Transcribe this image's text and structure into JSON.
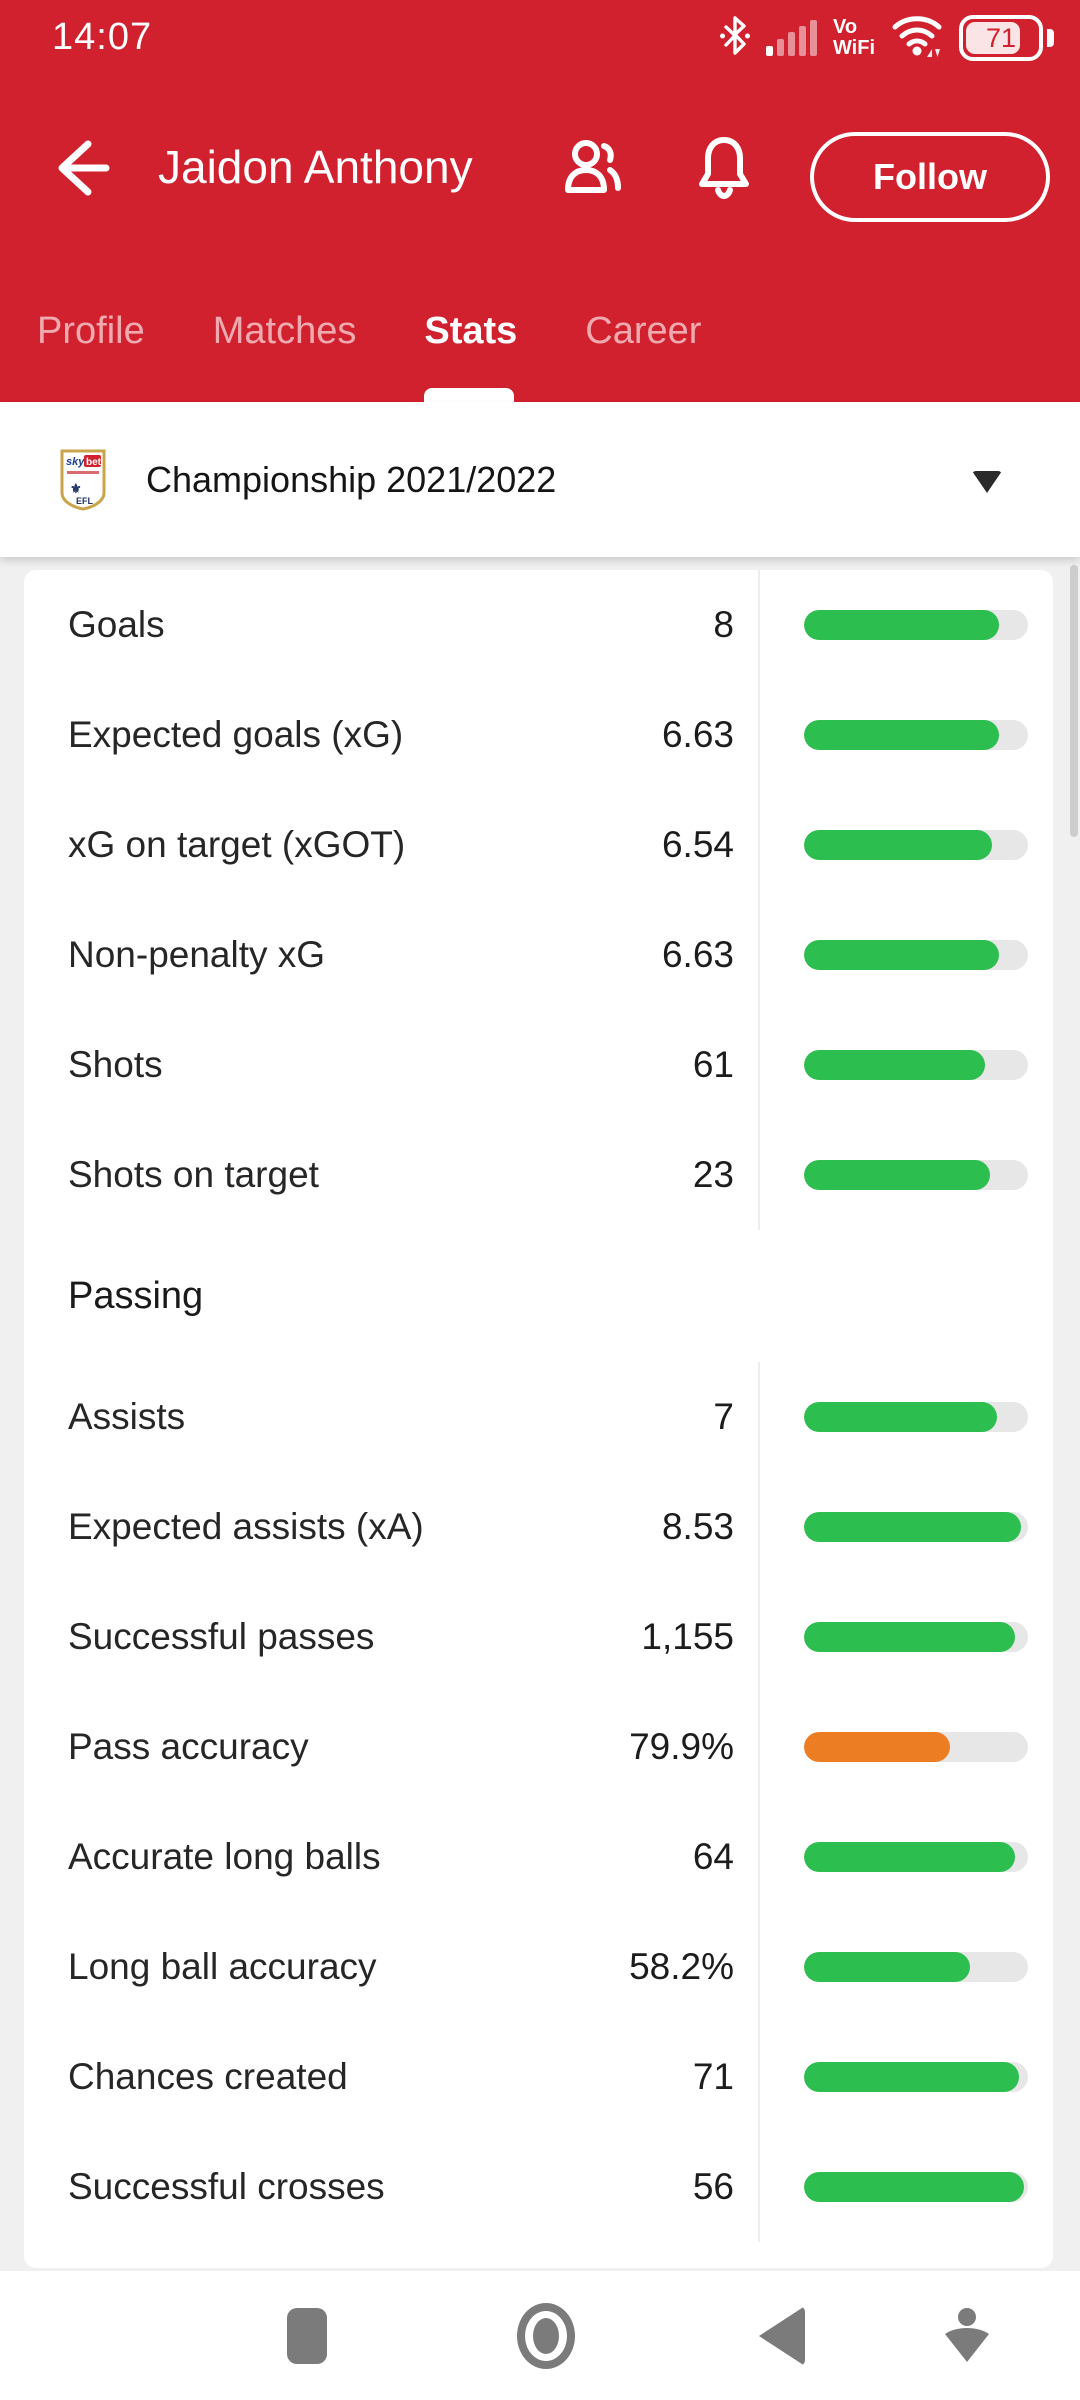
{
  "colors": {
    "header_red": "#d1202e",
    "green": "#2dbe50",
    "orange": "#ec7d23",
    "bar_track": "#e7e7e7"
  },
  "status_bar": {
    "time": "14:07",
    "vo_line1": "Vo",
    "vo_line2": "WiFi",
    "battery_percent": "71"
  },
  "header": {
    "title": "Jaidon Anthony",
    "follow_label": "Follow"
  },
  "tabs": [
    {
      "label": "Profile",
      "active": false
    },
    {
      "label": "Matches",
      "active": false
    },
    {
      "label": "Stats",
      "active": true
    },
    {
      "label": "Career",
      "active": false
    }
  ],
  "league_selector": {
    "label": "Championship 2021/2022",
    "badge_sky": "sky",
    "badge_bet": "bet",
    "badge_efl": "EFL"
  },
  "stats": {
    "sections": [
      {
        "header": null,
        "rows": [
          {
            "label": "Goals",
            "value": "8",
            "percent": 87,
            "color": "green"
          },
          {
            "label": "Expected goals (xG)",
            "value": "6.63",
            "percent": 87,
            "color": "green"
          },
          {
            "label": "xG on target (xGOT)",
            "value": "6.54",
            "percent": 84,
            "color": "green"
          },
          {
            "label": "Non-penalty xG",
            "value": "6.63",
            "percent": 87,
            "color": "green"
          },
          {
            "label": "Shots",
            "value": "61",
            "percent": 81,
            "color": "green"
          },
          {
            "label": "Shots on target",
            "value": "23",
            "percent": 83,
            "color": "green"
          }
        ]
      },
      {
        "header": "Passing",
        "rows": [
          {
            "label": "Assists",
            "value": "7",
            "percent": 86,
            "color": "green"
          },
          {
            "label": "Expected assists (xA)",
            "value": "8.53",
            "percent": 97,
            "color": "green"
          },
          {
            "label": "Successful passes",
            "value": "1,155",
            "percent": 94,
            "color": "green"
          },
          {
            "label": "Pass accuracy",
            "value": "79.9%",
            "percent": 65,
            "color": "orange"
          },
          {
            "label": "Accurate long balls",
            "value": "64",
            "percent": 94,
            "color": "green"
          },
          {
            "label": "Long ball accuracy",
            "value": "58.2%",
            "percent": 74,
            "color": "green"
          },
          {
            "label": "Chances created",
            "value": "71",
            "percent": 96,
            "color": "green"
          },
          {
            "label": "Successful crosses",
            "value": "56",
            "percent": 98,
            "color": "green"
          }
        ]
      }
    ]
  }
}
